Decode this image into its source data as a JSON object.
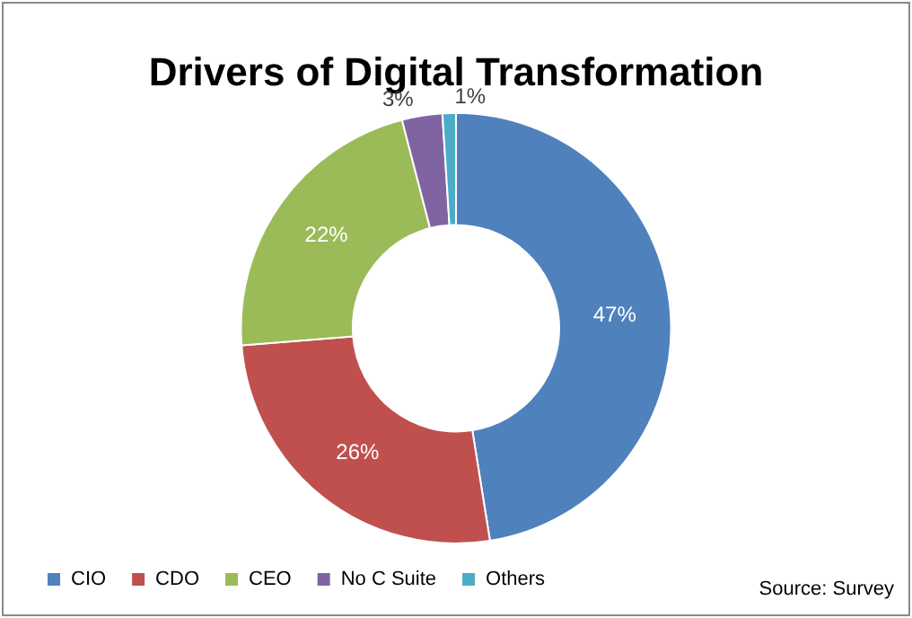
{
  "chart_data": {
    "type": "donut",
    "title": "Drivers of Digital Transformation",
    "categories": [
      "CIO",
      "CDO",
      "CEO",
      "No C Suite",
      "Others"
    ],
    "values": [
      47,
      26,
      22,
      3,
      1
    ],
    "colors": [
      "#4f81bd",
      "#c0504d",
      "#9bbb59",
      "#8064a2",
      "#4bacc6"
    ],
    "value_labels": [
      "47%",
      "26%",
      "22%",
      "3%",
      "1%"
    ],
    "legend": "bottom left",
    "annotations": [
      "Source: Survey"
    ]
  }
}
